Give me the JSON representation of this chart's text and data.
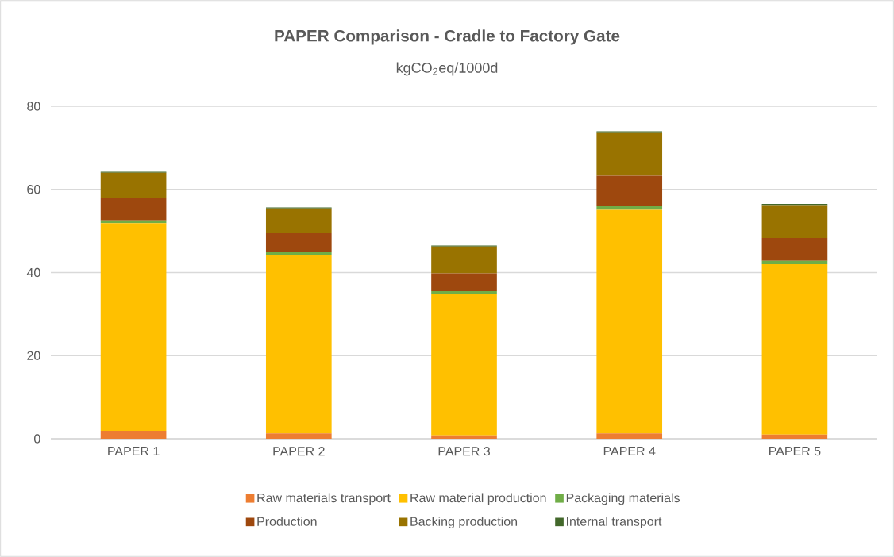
{
  "chart_data": {
    "type": "bar",
    "title": "PAPER Comparison - Cradle to Factory Gate",
    "subtitle": "kgCO$_{2}$eq/1000d",
    "categories": [
      "PAPER 1",
      "PAPER 2",
      "PAPER 3",
      "PAPER 4",
      "PAPER 5"
    ],
    "stacked": true,
    "series": [
      {
        "name": "Raw materials transport",
        "color": "#ed7d31",
        "values": [
          1.9,
          1.3,
          0.8,
          1.3,
          1.0
        ]
      },
      {
        "name": "Raw material production",
        "color": "#ffc000",
        "values": [
          50.0,
          42.9,
          34.0,
          53.8,
          41.0
        ]
      },
      {
        "name": "Packaging materials",
        "color": "#70ad47",
        "values": [
          0.65,
          0.65,
          0.7,
          0.9,
          0.8
        ]
      },
      {
        "name": "Production",
        "color": "#9e480e",
        "values": [
          5.45,
          4.6,
          4.3,
          7.3,
          5.5
        ]
      },
      {
        "name": "Backing production",
        "color": "#997300",
        "values": [
          6.0,
          5.95,
          6.45,
          10.45,
          7.95
        ]
      },
      {
        "name": "Internal transport",
        "color": "#43682b",
        "values": [
          0.25,
          0.25,
          0.25,
          0.25,
          0.25
        ]
      }
    ],
    "ylim": [
      0,
      80
    ],
    "yticks": [
      0,
      20,
      40,
      60,
      80
    ],
    "grid": "y",
    "legend": "bottom"
  }
}
